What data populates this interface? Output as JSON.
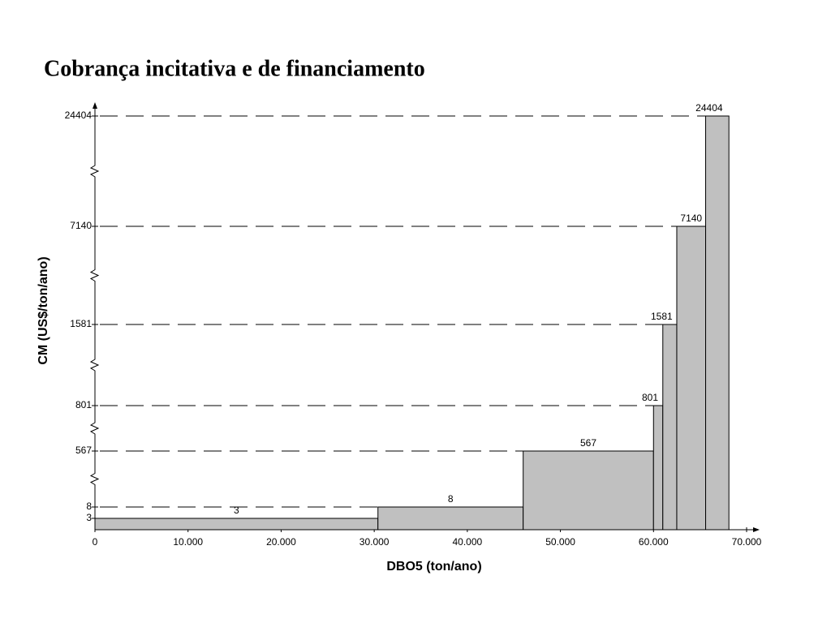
{
  "chart_data": {
    "type": "histogram",
    "title": "Cobrança incitativa e de financiamento",
    "xlabel": "DBO5 (ton/ano)",
    "ylabel": "CM (US$/ton/ano)",
    "bins": [
      0,
      30400,
      46000,
      60000,
      61000,
      62500,
      65600,
      68100
    ],
    "values": [
      3,
      8,
      567,
      801,
      1581,
      7140,
      24404
    ],
    "color": "#c0c0c0",
    "xlim": [
      0,
      70000
    ],
    "xticks": [
      0,
      {
        "value": 10000,
        "label": "10.000"
      },
      {
        "value": 20000,
        "label": "20.000"
      },
      {
        "value": 30000,
        "label": "30.000"
      },
      {
        "value": 40000,
        "label": "40.000"
      },
      {
        "value": 50000,
        "label": "50.000"
      },
      {
        "value": 60000,
        "label": "60.000"
      },
      {
        "value": 70000,
        "label": "70.000"
      }
    ],
    "ylim": [
      0,
      24404
    ],
    "yticks": [
      3,
      8,
      567,
      801,
      1581,
      7140,
      24404
    ],
    "yscale": "broken",
    "grid": true
  }
}
